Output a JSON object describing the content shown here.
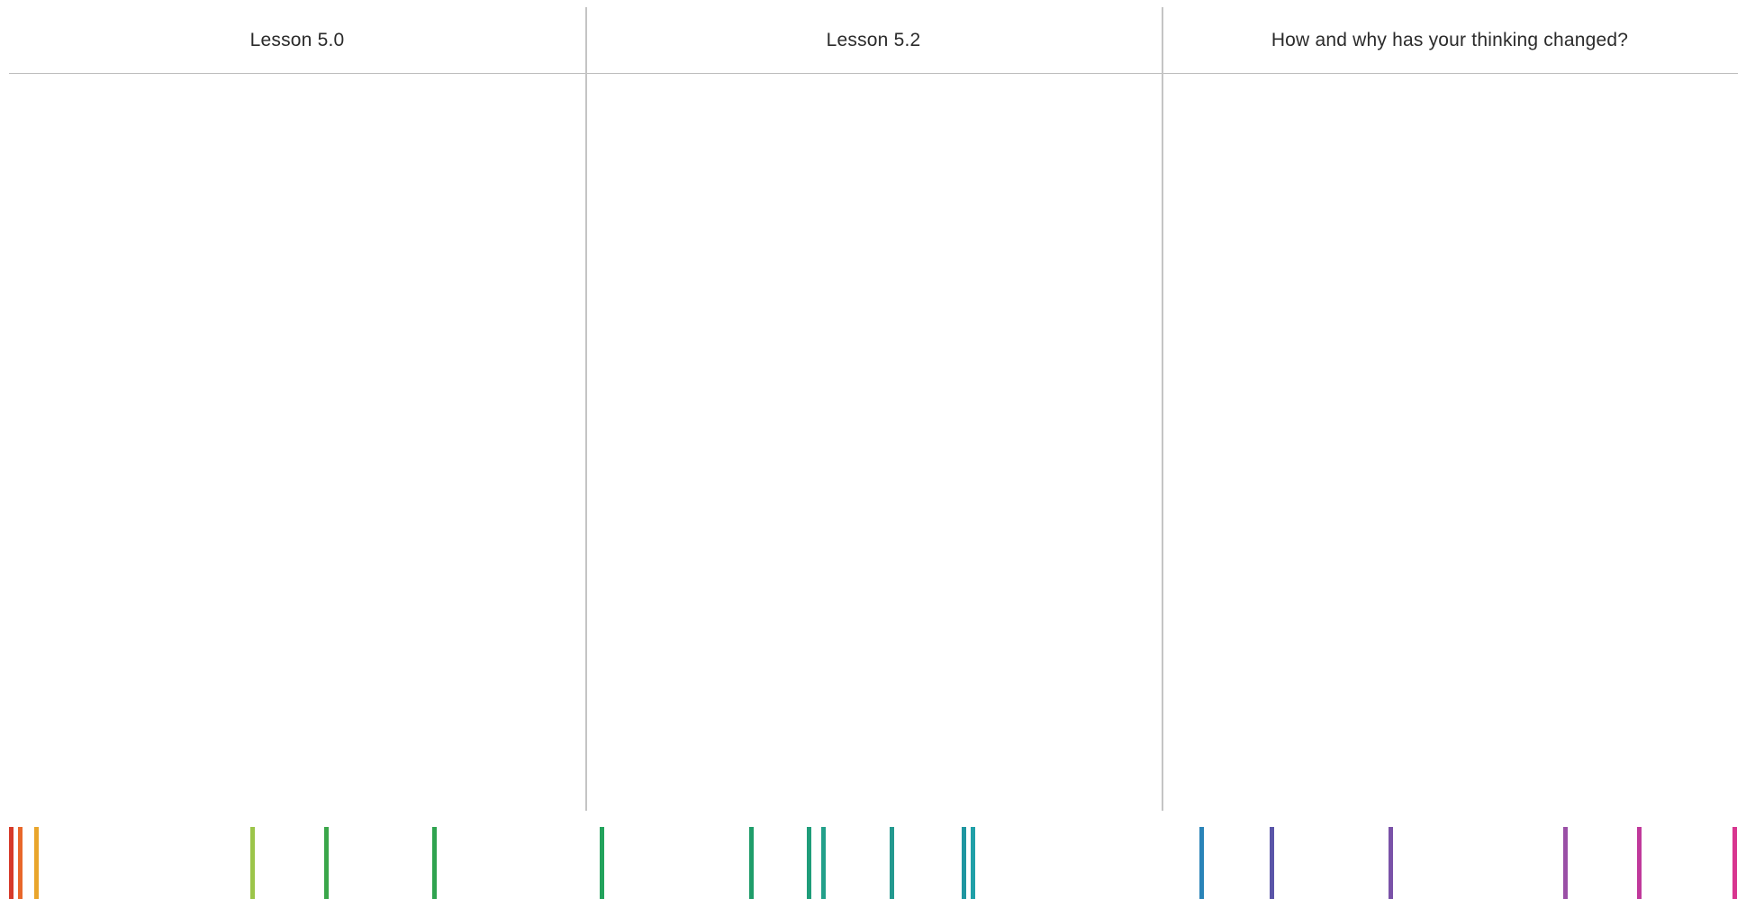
{
  "worksheet": {
    "columns": [
      {
        "header": "Lesson 5.0"
      },
      {
        "header": "Lesson 5.2"
      },
      {
        "header": "How and why has your thinking changed?"
      }
    ]
  },
  "color_strip": {
    "colors": [
      "#d63a2a",
      "#e8672a",
      "#e9a52c",
      "#9cc54a",
      "#3aa64a",
      "#2fa34f",
      "#23a35c",
      "#1f9d6a",
      "#1f9d7a",
      "#22a08a",
      "#23998f",
      "#1f96a0",
      "#20a0a8",
      "#2a84b8",
      "#5a55a8",
      "#7a52a8",
      "#9a4fa6",
      "#c0399b",
      "#d8358f"
    ]
  }
}
